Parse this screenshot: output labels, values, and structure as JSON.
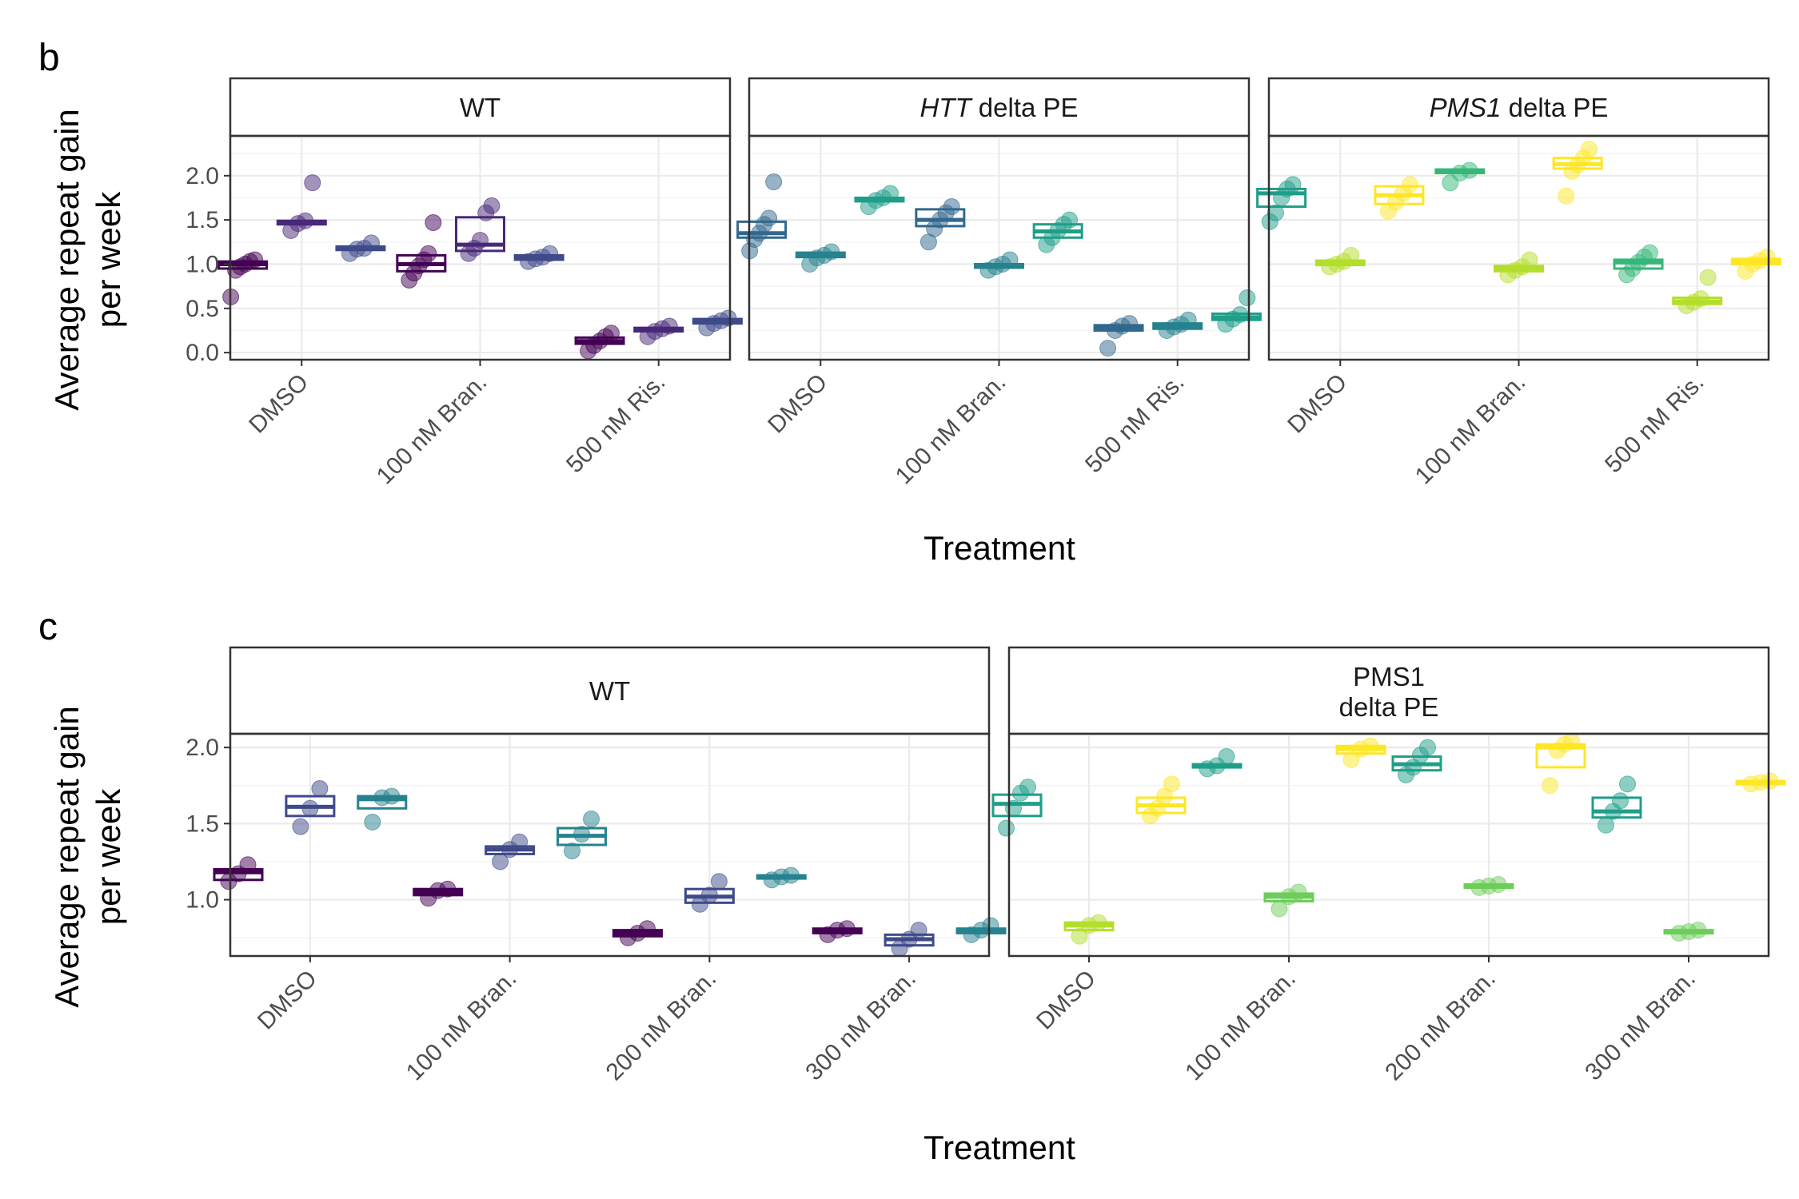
{
  "colors": {
    "viridis": [
      "#440154",
      "#482878",
      "#3E4A89",
      "#31688E",
      "#26828E",
      "#1F9E89",
      "#35B779",
      "#6DCD59",
      "#B4DE2C",
      "#FDE725"
    ]
  },
  "chart_data": [
    {
      "type": "box",
      "panel_label": "b",
      "ylabel_line1": "Average repeat gain",
      "ylabel_line2": "per week",
      "xlabel": "Treatment",
      "ylim": [
        -0.08,
        2.45
      ],
      "yticks": [
        "0.0",
        "0.5",
        "1.0",
        "1.5",
        "2.0"
      ],
      "categories": [
        "DMSO",
        "100 nM Bran.",
        "500 nM Ris."
      ],
      "facets": [
        {
          "strip": {
            "italic": "",
            "plain": "WT"
          },
          "groups": [
            {
              "category": "DMSO",
              "boxes": [
                {
                  "color": "#440154",
                  "q1": 0.95,
                  "median": 1.0,
                  "q3": 1.03,
                  "points": [
                    0.63,
                    0.93,
                    0.97,
                    1.0,
                    1.03,
                    1.05
                  ]
                },
                {
                  "color": "#482878",
                  "q1": 1.45,
                  "median": 1.47,
                  "q3": 1.49,
                  "points": [
                    1.38,
                    1.46,
                    1.49,
                    1.92
                  ]
                },
                {
                  "color": "#3E4A89",
                  "q1": 1.16,
                  "median": 1.18,
                  "q3": 1.2,
                  "points": [
                    1.12,
                    1.17,
                    1.18,
                    1.24
                  ]
                }
              ]
            },
            {
              "category": "100 nM Bran.",
              "boxes": [
                {
                  "color": "#440154",
                  "q1": 0.92,
                  "median": 1.0,
                  "q3": 1.1,
                  "points": [
                    0.82,
                    0.9,
                    0.98,
                    1.05,
                    1.12,
                    1.47
                  ]
                },
                {
                  "color": "#482878",
                  "q1": 1.15,
                  "median": 1.22,
                  "q3": 1.53,
                  "points": [
                    1.12,
                    1.18,
                    1.27,
                    1.58,
                    1.66
                  ]
                },
                {
                  "color": "#3E4A89",
                  "q1": 1.05,
                  "median": 1.07,
                  "q3": 1.1,
                  "points": [
                    1.03,
                    1.06,
                    1.08,
                    1.12
                  ]
                }
              ]
            },
            {
              "category": "500 nM Ris.",
              "boxes": [
                {
                  "color": "#440154",
                  "q1": 0.1,
                  "median": 0.13,
                  "q3": 0.17,
                  "points": [
                    0.02,
                    0.08,
                    0.13,
                    0.18,
                    0.22
                  ]
                },
                {
                  "color": "#482878",
                  "q1": 0.24,
                  "median": 0.26,
                  "q3": 0.28,
                  "points": [
                    0.18,
                    0.24,
                    0.27,
                    0.3
                  ]
                },
                {
                  "color": "#3E4A89",
                  "q1": 0.33,
                  "median": 0.35,
                  "q3": 0.38,
                  "points": [
                    0.28,
                    0.33,
                    0.36,
                    0.39
                  ]
                }
              ]
            }
          ]
        },
        {
          "strip": {
            "italic": "HTT",
            "plain": " delta PE"
          },
          "groups": [
            {
              "category": "DMSO",
              "boxes": [
                {
                  "color": "#31688E",
                  "q1": 1.3,
                  "median": 1.35,
                  "q3": 1.48,
                  "points": [
                    1.15,
                    1.28,
                    1.35,
                    1.45,
                    1.52,
                    1.93
                  ]
                },
                {
                  "color": "#26828E",
                  "q1": 1.08,
                  "median": 1.1,
                  "q3": 1.13,
                  "points": [
                    1.0,
                    1.07,
                    1.1,
                    1.14
                  ]
                },
                {
                  "color": "#1F9E89",
                  "q1": 1.71,
                  "median": 1.73,
                  "q3": 1.75,
                  "points": [
                    1.65,
                    1.72,
                    1.75,
                    1.8
                  ]
                }
              ]
            },
            {
              "category": "100 nM Bran.",
              "boxes": [
                {
                  "color": "#31688E",
                  "q1": 1.43,
                  "median": 1.5,
                  "q3": 1.62,
                  "points": [
                    1.25,
                    1.4,
                    1.5,
                    1.58,
                    1.65
                  ]
                },
                {
                  "color": "#26828E",
                  "q1": 0.96,
                  "median": 0.98,
                  "q3": 1.0,
                  "points": [
                    0.93,
                    0.97,
                    1.0,
                    1.05
                  ]
                },
                {
                  "color": "#1F9E89",
                  "q1": 1.3,
                  "median": 1.37,
                  "q3": 1.45,
                  "points": [
                    1.22,
                    1.3,
                    1.38,
                    1.45,
                    1.5
                  ]
                }
              ]
            },
            {
              "category": "500 nM Ris.",
              "boxes": [
                {
                  "color": "#31688E",
                  "q1": 0.25,
                  "median": 0.28,
                  "q3": 0.31,
                  "points": [
                    0.05,
                    0.25,
                    0.3,
                    0.33
                  ]
                },
                {
                  "color": "#26828E",
                  "q1": 0.27,
                  "median": 0.3,
                  "q3": 0.33,
                  "points": [
                    0.25,
                    0.29,
                    0.32,
                    0.37
                  ]
                },
                {
                  "color": "#1F9E89",
                  "q1": 0.37,
                  "median": 0.4,
                  "q3": 0.44,
                  "points": [
                    0.32,
                    0.38,
                    0.43,
                    0.62
                  ]
                }
              ]
            }
          ]
        },
        {
          "strip": {
            "italic": "PMS1",
            "plain": " delta PE"
          },
          "groups": [
            {
              "category": "DMSO",
              "boxes": [
                {
                  "color": "#1F9E89",
                  "q1": 1.65,
                  "median": 1.8,
                  "q3": 1.85,
                  "points": [
                    1.48,
                    1.58,
                    1.75,
                    1.85,
                    1.9
                  ]
                },
                {
                  "color": "#B4DE2C",
                  "q1": 0.99,
                  "median": 1.01,
                  "q3": 1.04,
                  "points": [
                    0.97,
                    1.0,
                    1.03,
                    1.1
                  ]
                },
                {
                  "color": "#FDE725",
                  "q1": 1.68,
                  "median": 1.78,
                  "q3": 1.88,
                  "points": [
                    1.6,
                    1.7,
                    1.8,
                    1.9
                  ]
                }
              ]
            },
            {
              "category": "100 nM Bran.",
              "boxes": [
                {
                  "color": "#35B779",
                  "q1": 2.03,
                  "median": 2.05,
                  "q3": 2.07,
                  "points": [
                    1.92,
                    2.03,
                    2.06
                  ]
                },
                {
                  "color": "#B4DE2C",
                  "q1": 0.92,
                  "median": 0.95,
                  "q3": 0.98,
                  "points": [
                    0.88,
                    0.93,
                    0.97,
                    1.05
                  ]
                },
                {
                  "color": "#FDE725",
                  "q1": 2.08,
                  "median": 2.13,
                  "q3": 2.2,
                  "points": [
                    1.77,
                    2.05,
                    2.12,
                    2.2,
                    2.3
                  ]
                }
              ]
            },
            {
              "category": "500 nM Ris.",
              "boxes": [
                {
                  "color": "#35B779",
                  "q1": 0.95,
                  "median": 1.02,
                  "q3": 1.05,
                  "points": [
                    0.88,
                    0.95,
                    1.02,
                    1.08,
                    1.13
                  ]
                },
                {
                  "color": "#B4DE2C",
                  "q1": 0.55,
                  "median": 0.58,
                  "q3": 0.62,
                  "points": [
                    0.53,
                    0.57,
                    0.61,
                    0.85
                  ]
                },
                {
                  "color": "#FDE725",
                  "q1": 1.0,
                  "median": 1.03,
                  "q3": 1.06,
                  "points": [
                    0.92,
                    1.0,
                    1.04,
                    1.08
                  ]
                }
              ]
            }
          ]
        }
      ]
    },
    {
      "type": "box",
      "panel_label": "c",
      "ylabel_line1": "Average repeat gain",
      "ylabel_line2": "per week",
      "xlabel": "Treatment",
      "ylim": [
        0.63,
        2.09
      ],
      "yticks": [
        "1.0",
        "1.5",
        "2.0"
      ],
      "categories": [
        "DMSO",
        "100 nM Bran.",
        "200 nM Bran.",
        "300 nM Bran."
      ],
      "facets": [
        {
          "strip": {
            "line1": "WT",
            "line2": ""
          },
          "groups": [
            {
              "category": "DMSO",
              "boxes": [
                {
                  "color": "#440154",
                  "q1": 1.13,
                  "median": 1.18,
                  "q3": 1.2,
                  "points": [
                    1.12,
                    1.17,
                    1.23
                  ]
                },
                {
                  "color": "#3E4A89",
                  "q1": 1.55,
                  "median": 1.61,
                  "q3": 1.68,
                  "points": [
                    1.48,
                    1.6,
                    1.73
                  ]
                },
                {
                  "color": "#26828E",
                  "q1": 1.6,
                  "median": 1.66,
                  "q3": 1.68,
                  "points": [
                    1.51,
                    1.67,
                    1.68
                  ]
                }
              ]
            },
            {
              "category": "100 nM Bran.",
              "boxes": [
                {
                  "color": "#440154",
                  "q1": 1.03,
                  "median": 1.05,
                  "q3": 1.07,
                  "points": [
                    1.01,
                    1.06,
                    1.07
                  ]
                },
                {
                  "color": "#3E4A89",
                  "q1": 1.3,
                  "median": 1.33,
                  "q3": 1.35,
                  "points": [
                    1.25,
                    1.33,
                    1.38
                  ]
                },
                {
                  "color": "#26828E",
                  "q1": 1.36,
                  "median": 1.42,
                  "q3": 1.47,
                  "points": [
                    1.32,
                    1.43,
                    1.53
                  ]
                }
              ]
            },
            {
              "category": "200 nM Bran.",
              "boxes": [
                {
                  "color": "#440154",
                  "q1": 0.76,
                  "median": 0.78,
                  "q3": 0.8,
                  "points": [
                    0.75,
                    0.78,
                    0.81
                  ]
                },
                {
                  "color": "#3E4A89",
                  "q1": 0.98,
                  "median": 1.02,
                  "q3": 1.07,
                  "points": [
                    0.97,
                    1.03,
                    1.12
                  ]
                },
                {
                  "color": "#26828E",
                  "q1": 1.14,
                  "median": 1.15,
                  "q3": 1.16,
                  "points": [
                    1.13,
                    1.15,
                    1.16
                  ]
                }
              ]
            },
            {
              "category": "300 nM Bran.",
              "boxes": [
                {
                  "color": "#440154",
                  "q1": 0.78,
                  "median": 0.8,
                  "q3": 0.81,
                  "points": [
                    0.77,
                    0.8,
                    0.81
                  ]
                },
                {
                  "color": "#3E4A89",
                  "q1": 0.7,
                  "median": 0.74,
                  "q3": 0.77,
                  "points": [
                    0.68,
                    0.74,
                    0.8
                  ]
                },
                {
                  "color": "#26828E",
                  "q1": 0.78,
                  "median": 0.8,
                  "q3": 0.81,
                  "points": [
                    0.77,
                    0.8,
                    0.83
                  ]
                }
              ]
            }
          ]
        },
        {
          "strip": {
            "line1": "PMS1",
            "line2": "delta PE"
          },
          "groups": [
            {
              "category": "DMSO",
              "boxes": [
                {
                  "color": "#1F9E89",
                  "q1": 1.55,
                  "median": 1.63,
                  "q3": 1.69,
                  "points": [
                    1.47,
                    1.6,
                    1.7,
                    1.74
                  ]
                },
                {
                  "color": "#B4DE2C",
                  "q1": 0.8,
                  "median": 0.83,
                  "q3": 0.85,
                  "points": [
                    0.76,
                    0.83,
                    0.85
                  ]
                },
                {
                  "color": "#FDE725",
                  "q1": 1.57,
                  "median": 1.62,
                  "q3": 1.67,
                  "points": [
                    1.55,
                    1.6,
                    1.68,
                    1.76
                  ]
                }
              ]
            },
            {
              "category": "100 nM Bran.",
              "boxes": [
                {
                  "color": "#1F9E89",
                  "q1": 1.87,
                  "median": 1.88,
                  "q3": 1.89,
                  "points": [
                    1.86,
                    1.88,
                    1.94
                  ]
                },
                {
                  "color": "#6DCD59",
                  "q1": 0.99,
                  "median": 1.02,
                  "q3": 1.04,
                  "points": [
                    0.94,
                    1.02,
                    1.05
                  ]
                },
                {
                  "color": "#FDE725",
                  "q1": 1.96,
                  "median": 1.99,
                  "q3": 2.01,
                  "points": [
                    1.92,
                    1.99,
                    2.01
                  ]
                }
              ]
            },
            {
              "category": "200 nM Bran.",
              "boxes": [
                {
                  "color": "#1F9E89",
                  "q1": 1.85,
                  "median": 1.89,
                  "q3": 1.94,
                  "points": [
                    1.82,
                    1.87,
                    1.95,
                    2.0
                  ]
                },
                {
                  "color": "#6DCD59",
                  "q1": 1.08,
                  "median": 1.09,
                  "q3": 1.1,
                  "points": [
                    1.08,
                    1.09,
                    1.1
                  ]
                },
                {
                  "color": "#FDE725",
                  "q1": 1.87,
                  "median": 2.0,
                  "q3": 2.02,
                  "points": [
                    1.75,
                    1.98,
                    2.02,
                    2.04
                  ]
                }
              ]
            },
            {
              "category": "300 nM Bran.",
              "boxes": [
                {
                  "color": "#1F9E89",
                  "q1": 1.54,
                  "median": 1.58,
                  "q3": 1.67,
                  "points": [
                    1.49,
                    1.58,
                    1.65,
                    1.76
                  ]
                },
                {
                  "color": "#6DCD59",
                  "q1": 0.78,
                  "median": 0.79,
                  "q3": 0.8,
                  "points": [
                    0.78,
                    0.79,
                    0.8
                  ]
                },
                {
                  "color": "#FDE725",
                  "q1": 1.76,
                  "median": 1.77,
                  "q3": 1.78,
                  "points": [
                    1.76,
                    1.77,
                    1.78
                  ]
                }
              ]
            }
          ]
        }
      ]
    }
  ]
}
